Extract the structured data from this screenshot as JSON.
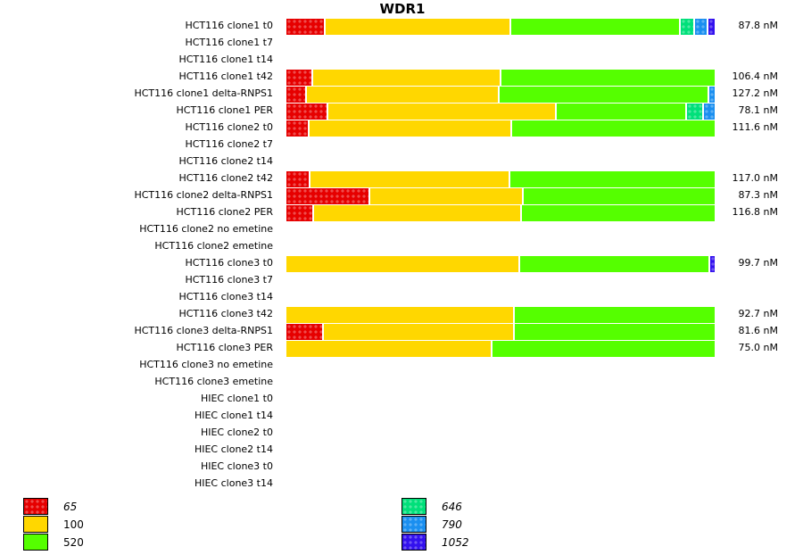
{
  "chart_data": {
    "type": "bar",
    "orientation": "horizontal-stacked-100",
    "title": "WDR1",
    "xlabel": "",
    "ylabel": "",
    "grid": false,
    "legend_position": "bottom",
    "series_order": [
      "65",
      "100",
      "520",
      "646",
      "790",
      "1052"
    ],
    "series": [
      {
        "name": "65",
        "color": "#e60000",
        "pattern": true,
        "italic": true
      },
      {
        "name": "100",
        "color": "#ffd700",
        "pattern": false,
        "italic": false
      },
      {
        "name": "520",
        "color": "#55ff00",
        "pattern": false,
        "italic": false
      },
      {
        "name": "646",
        "color": "#00e07a",
        "pattern": true,
        "italic": true
      },
      {
        "name": "790",
        "color": "#1a8ff0",
        "pattern": true,
        "italic": true
      },
      {
        "name": "1052",
        "color": "#3311ee",
        "pattern": true,
        "italic": true
      }
    ],
    "categories": [
      "HCT116 clone1 t0",
      "HCT116 clone1 t7",
      "HCT116 clone1 t14",
      "HCT116 clone1 t42",
      "HCT116 clone1 delta-RNPS1",
      "HCT116 clone1 PER",
      "HCT116 clone2 t0",
      "HCT116 clone2 t7",
      "HCT116 clone2 t14",
      "HCT116 clone2 t42",
      "HCT116 clone2 delta-RNPS1",
      "HCT116 clone2 PER",
      "HCT116 clone2 no emetine",
      "HCT116 clone2 emetine",
      "HCT116 clone3 t0",
      "HCT116 clone3 t7",
      "HCT116 clone3 t14",
      "HCT116 clone3 t42",
      "HCT116 clone3 delta-RNPS1",
      "HCT116 clone3 PER",
      "HCT116 clone3 no emetine",
      "HCT116 clone3 emetine",
      "HIEC clone1 t0",
      "HIEC clone1 t14",
      "HIEC clone2 t0",
      "HIEC clone2 t14",
      "HIEC clone3 t0",
      "HIEC clone3 t14"
    ],
    "rows": [
      {
        "label": "HCT116 clone1 t0",
        "value_text": "87.8 nM",
        "fractions": {
          "65": 0.092,
          "100": 0.431,
          "520": 0.394,
          "646": 0.033,
          "790": 0.031,
          "1052": 0.019
        }
      },
      {
        "label": "HCT116 clone1 t7",
        "value_text": "",
        "fractions": {}
      },
      {
        "label": "HCT116 clone1 t14",
        "value_text": "",
        "fractions": {}
      },
      {
        "label": "HCT116 clone1 t42",
        "value_text": "106.4 nM",
        "fractions": {
          "65": 0.0625,
          "100": 0.4375,
          "520": 0.5
        }
      },
      {
        "label": "HCT116 clone1 delta-RNPS1",
        "value_text": "127.2 nM",
        "fractions": {
          "65": 0.048,
          "100": 0.448,
          "520": 0.487,
          "790": 0.017
        }
      },
      {
        "label": "HCT116 clone1 PER",
        "value_text": "78.1 nM",
        "fractions": {
          "65": 0.098,
          "100": 0.531,
          "520": 0.302,
          "646": 0.04,
          "790": 0.029
        }
      },
      {
        "label": "HCT116 clone2 t0",
        "value_text": "111.6 nM",
        "fractions": {
          "65": 0.054,
          "100": 0.471,
          "520": 0.475
        }
      },
      {
        "label": "HCT116 clone2 t7",
        "value_text": "",
        "fractions": {}
      },
      {
        "label": "HCT116 clone2 t14",
        "value_text": "",
        "fractions": {}
      },
      {
        "label": "HCT116 clone2 t42",
        "value_text": "117.0 nM",
        "fractions": {
          "65": 0.056,
          "100": 0.465,
          "520": 0.479
        }
      },
      {
        "label": "HCT116 clone2 delta-RNPS1",
        "value_text": "87.3 nM",
        "fractions": {
          "65": 0.196,
          "100": 0.356,
          "520": 0.448
        }
      },
      {
        "label": "HCT116 clone2 PER",
        "value_text": "116.8 nM",
        "fractions": {
          "65": 0.065,
          "100": 0.483,
          "520": 0.452
        }
      },
      {
        "label": "HCT116 clone2 no emetine",
        "value_text": "",
        "fractions": {}
      },
      {
        "label": "HCT116 clone2 emetine",
        "value_text": "",
        "fractions": {}
      },
      {
        "label": "HCT116 clone3 t0",
        "value_text": "99.7 nM",
        "fractions": {
          "100": 0.544,
          "520": 0.442,
          "1052": 0.014
        }
      },
      {
        "label": "HCT116 clone3 t7",
        "value_text": "",
        "fractions": {}
      },
      {
        "label": "HCT116 clone3 t14",
        "value_text": "",
        "fractions": {}
      },
      {
        "label": "HCT116 clone3 t42",
        "value_text": "92.7 nM",
        "fractions": {
          "100": 0.531,
          "520": 0.469
        }
      },
      {
        "label": "HCT116 clone3 delta-RNPS1",
        "value_text": "81.6 nM",
        "fractions": {
          "65": 0.0875,
          "100": 0.444,
          "520": 0.4685
        }
      },
      {
        "label": "HCT116 clone3 PER",
        "value_text": "75.0 nM",
        "fractions": {
          "100": 0.479,
          "520": 0.521
        }
      },
      {
        "label": "HCT116 clone3 no emetine",
        "value_text": "",
        "fractions": {}
      },
      {
        "label": "HCT116 clone3 emetine",
        "value_text": "",
        "fractions": {}
      },
      {
        "label": "HIEC clone1 t0",
        "value_text": "",
        "fractions": {}
      },
      {
        "label": "HIEC clone1 t14",
        "value_text": "",
        "fractions": {}
      },
      {
        "label": "HIEC clone2 t0",
        "value_text": "",
        "fractions": {}
      },
      {
        "label": "HIEC clone2 t14",
        "value_text": "",
        "fractions": {}
      },
      {
        "label": "HIEC clone3 t0",
        "value_text": "",
        "fractions": {}
      },
      {
        "label": "HIEC clone3 t14",
        "value_text": "",
        "fractions": {}
      }
    ]
  }
}
